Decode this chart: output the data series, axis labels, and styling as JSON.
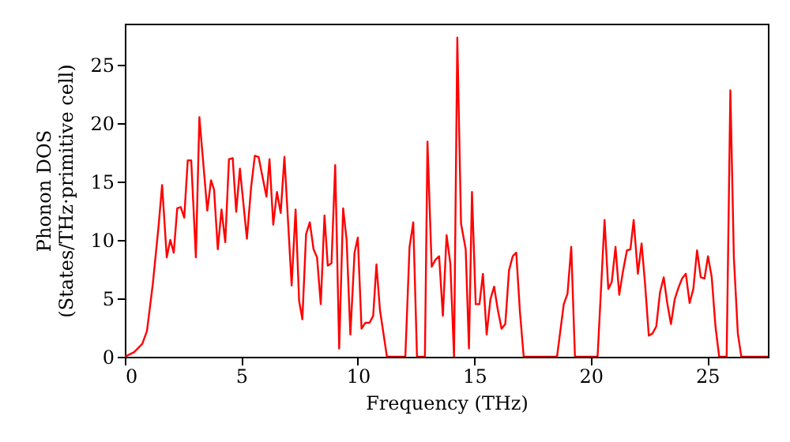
{
  "chart_data": {
    "type": "line",
    "xlabel": "Frequency (THz)",
    "ylabel": "Phonon DOS\n(States/THz·primitive cell)",
    "xlim": [
      0,
      27.6
    ],
    "ylim": [
      0,
      28.5
    ],
    "xticks": [
      0,
      5,
      10,
      15,
      20,
      25
    ],
    "yticks": [
      0,
      5,
      10,
      15,
      20,
      25
    ],
    "grid": false,
    "marker": "none",
    "line_style": "solid",
    "series": [
      {
        "color": "#ff0000",
        "x": [
          0,
          0.4,
          0.75,
          0.95,
          1.2,
          1.45,
          1.6,
          1.8,
          1.95,
          2.1,
          2.25,
          2.4,
          2.55,
          2.7,
          2.85,
          3.05,
          3.2,
          3.54,
          3.7,
          3.83,
          3.99,
          4.15,
          4.31,
          4.47,
          4.63,
          4.78,
          4.94,
          5.24,
          5.42,
          5.58,
          5.74,
          6.08,
          6.21,
          6.37,
          6.53,
          6.69,
          6.85,
          7.16,
          7.33,
          7.48,
          7.62,
          7.78,
          7.94,
          8.1,
          8.25,
          8.41,
          8.57,
          8.71,
          8.87,
          9.03,
          9.2,
          9.37,
          9.52,
          9.68,
          9.86,
          10.0,
          10.16,
          10.32,
          10.5,
          10.66,
          10.8,
          10.95,
          11.25,
          12.04,
          12.22,
          12.38,
          12.54,
          12.88,
          12.99,
          13.17,
          13.33,
          13.49,
          13.65,
          13.81,
          13.97,
          14.13,
          14.27,
          14.43,
          14.63,
          14.77,
          14.9,
          15.06,
          15.22,
          15.37,
          15.53,
          15.69,
          15.85,
          16.01,
          16.17,
          16.33,
          16.49,
          16.65,
          16.8,
          16.96,
          17.12,
          18.55,
          18.84,
          19.0,
          19.16,
          19.32,
          20.29,
          20.59,
          20.75,
          20.9,
          21.06,
          21.22,
          21.38,
          21.55,
          21.7,
          21.84,
          22.02,
          22.18,
          22.33,
          22.49,
          22.65,
          22.81,
          22.97,
          23.13,
          23.28,
          23.44,
          23.6,
          23.76,
          23.92,
          24.08,
          24.24,
          24.4,
          24.56,
          24.72,
          24.88,
          25.03,
          25.19,
          25.35,
          25.51,
          25.83,
          25.99,
          26.14,
          26.31,
          26.46,
          27.6
        ],
        "values": [
          0,
          0.4,
          1.1,
          2.2,
          6.2,
          11.2,
          14.7,
          8.5,
          10,
          8.9,
          12.7,
          12.8,
          11.9,
          16.8,
          16.8,
          8.5,
          20.5,
          12.5,
          15.1,
          14.3,
          9.2,
          12.6,
          9.8,
          16.9,
          17.0,
          12.4,
          16.1,
          10.1,
          14.5,
          17.2,
          17.1,
          13.7,
          16.9,
          11.3,
          14.1,
          12.3,
          17.1,
          6.1,
          12.6,
          4.8,
          3.2,
          10.5,
          11.5,
          9.2,
          8.5,
          4.5,
          12.1,
          7.8,
          8.0,
          16.4,
          0.7,
          12.7,
          10.0,
          1.9,
          8.9,
          10.2,
          2.4,
          2.9,
          2.9,
          3.5,
          7.9,
          4.0,
          0,
          0,
          9.4,
          11.5,
          0,
          0,
          18.4,
          7.7,
          8.3,
          8.6,
          3.5,
          10.4,
          8.0,
          0,
          27.3,
          11.4,
          9.2,
          0.7,
          14.1,
          4.5,
          4.5,
          7.1,
          1.9,
          4.9,
          6.0,
          4.0,
          2.4,
          2.8,
          7.4,
          8.6,
          8.9,
          3.8,
          0,
          0,
          4.5,
          5.4,
          9.4,
          0,
          0,
          11.7,
          5.8,
          6.4,
          9.4,
          5.3,
          7.3,
          9.1,
          9.2,
          11.7,
          7.1,
          9.7,
          6.2,
          1.8,
          2.0,
          2.6,
          5.5,
          6.8,
          4.6,
          2.8,
          4.9,
          5.9,
          6.7,
          7.1,
          4.6,
          5.8,
          9.1,
          6.8,
          6.7,
          8.6,
          6.8,
          2.6,
          0,
          0,
          22.8,
          8.5,
          2.0,
          0,
          0
        ]
      }
    ]
  }
}
